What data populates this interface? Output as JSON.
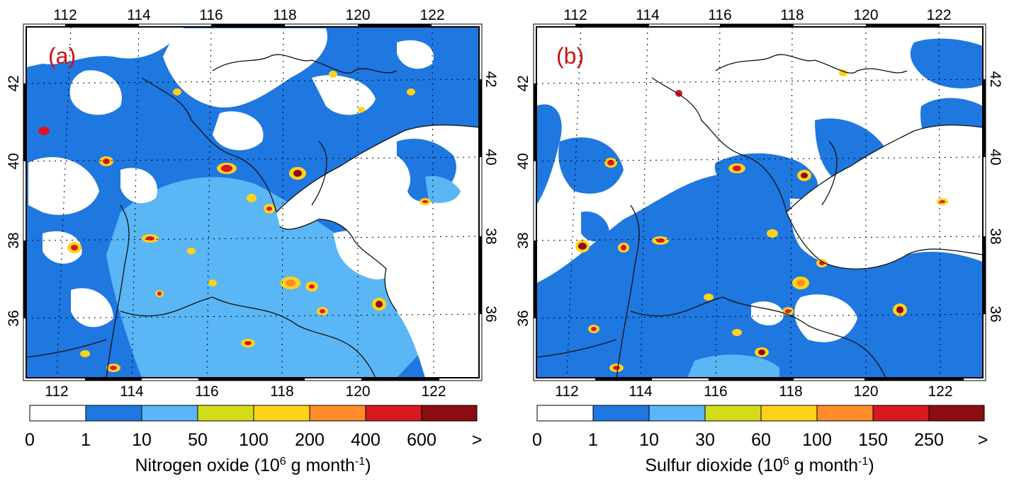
{
  "panels": [
    {
      "label": "(a)",
      "top_ticks": [
        "112",
        "114",
        "116",
        "118",
        "120",
        "122"
      ],
      "bottom_ticks": [
        "112",
        "114",
        "116",
        "118",
        "120",
        "122"
      ],
      "left_ticks": [
        "42",
        "40",
        "38",
        "36"
      ],
      "right_ticks": [
        "42",
        "40",
        "38",
        "36"
      ],
      "legend_ticks": [
        "0",
        "1",
        "10",
        "50",
        "100",
        "200",
        "400",
        "600",
        ">"
      ],
      "legend_prefix": "Nitrogen oxide (10",
      "legend_exp1": "6",
      "legend_mid": " g month",
      "legend_exp2": "-1",
      "legend_suffix": ")"
    },
    {
      "label": "(b)",
      "top_ticks": [
        "112",
        "114",
        "116",
        "118",
        "120",
        "122"
      ],
      "bottom_ticks": [
        "112",
        "114",
        "116",
        "118",
        "120",
        "122"
      ],
      "left_ticks": [
        "42",
        "40",
        "38",
        "36"
      ],
      "right_ticks": [
        "42",
        "40",
        "38",
        "36"
      ],
      "legend_ticks": [
        "0",
        "1",
        "10",
        "30",
        "60",
        "100",
        "150",
        "250",
        ">"
      ],
      "legend_prefix": "Sulfur dioxide (10",
      "legend_exp1": "6",
      "legend_mid": " g month",
      "legend_exp2": "-1",
      "legend_suffix": ")"
    }
  ],
  "colors": {
    "bins": [
      "#ffffff",
      "#1f77e0",
      "#5ab6f4",
      "#d4dc1a",
      "#ffd21a",
      "#ff8c2a",
      "#d71921",
      "#8b0d12"
    ],
    "label": "#cc1111",
    "sea": "#ffffff",
    "border": "#111111"
  }
}
